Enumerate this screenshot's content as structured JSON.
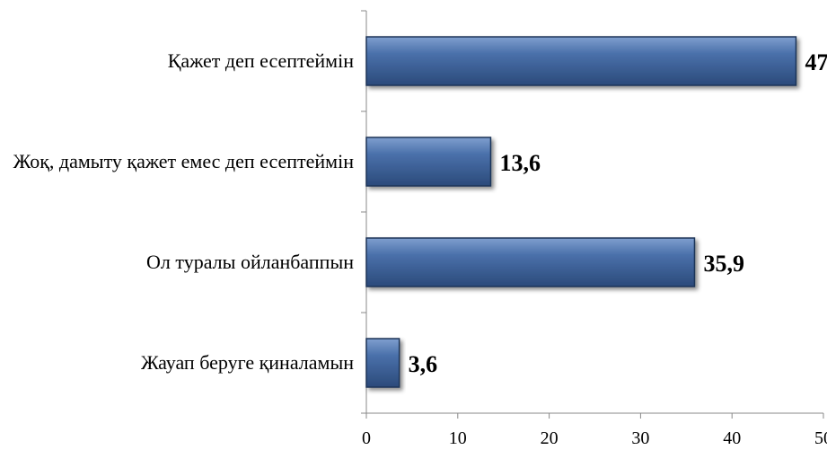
{
  "chart_data": {
    "type": "barh",
    "categories": [
      "Қажет деп есептеймін",
      "Жоқ, дамыту қажет емес деп есептеймін",
      "Ол туралы ойланбаппын",
      "Жауап беруге қиналамын"
    ],
    "values": [
      47,
      13.6,
      35.9,
      3.6
    ],
    "value_labels": [
      "47",
      "13,6",
      "35,9",
      "3,6"
    ],
    "color": "#3b5f95",
    "xlim": [
      0,
      50
    ],
    "xticks": [
      0,
      10,
      20,
      30,
      40,
      50
    ],
    "grid": false
  }
}
